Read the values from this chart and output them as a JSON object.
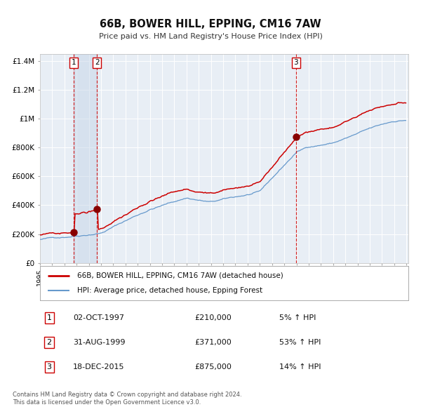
{
  "title": "66B, BOWER HILL, EPPING, CM16 7AW",
  "subtitle": "Price paid vs. HM Land Registry's House Price Index (HPI)",
  "sale_dates_str": [
    "02-OCT-1997",
    "31-AUG-1999",
    "18-DEC-2015"
  ],
  "sale_prices": [
    210000,
    371000,
    875000
  ],
  "sale_labels": [
    "1",
    "2",
    "3"
  ],
  "sale_pct_hpi": [
    "5% ↑ HPI",
    "53% ↑ HPI",
    "14% ↑ HPI"
  ],
  "red_line_color": "#cc0000",
  "blue_line_color": "#6699cc",
  "sale_marker_color": "#880000",
  "vline_color": "#cc0000",
  "box_edge_color": "#cc0000",
  "legend_label_red": "66B, BOWER HILL, EPPING, CM16 7AW (detached house)",
  "legend_label_blue": "HPI: Average price, detached house, Epping Forest",
  "footer1": "Contains HM Land Registry data © Crown copyright and database right 2024.",
  "footer2": "This data is licensed under the Open Government Licence v3.0.",
  "ylim": [
    0,
    1450000
  ],
  "yticks": [
    0,
    200000,
    400000,
    600000,
    800000,
    1000000,
    1200000,
    1400000
  ],
  "ytick_labels": [
    "£0",
    "£200K",
    "£400K",
    "£600K",
    "£800K",
    "£1M",
    "£1.2M",
    "£1.4M"
  ],
  "plot_bg_color": "#e8eef5",
  "grid_color": "#ffffff",
  "shade_color": "#c5d5e8",
  "shade_alpha": 0.5,
  "x_start_year": 1995,
  "x_end_year": 2025,
  "table_rows": [
    [
      "1",
      "02-OCT-1997",
      "£210,000",
      "5% ↑ HPI"
    ],
    [
      "2",
      "31-AUG-1999",
      "£371,000",
      "53% ↑ HPI"
    ],
    [
      "3",
      "18-DEC-2015",
      "£875,000",
      "14% ↑ HPI"
    ]
  ]
}
